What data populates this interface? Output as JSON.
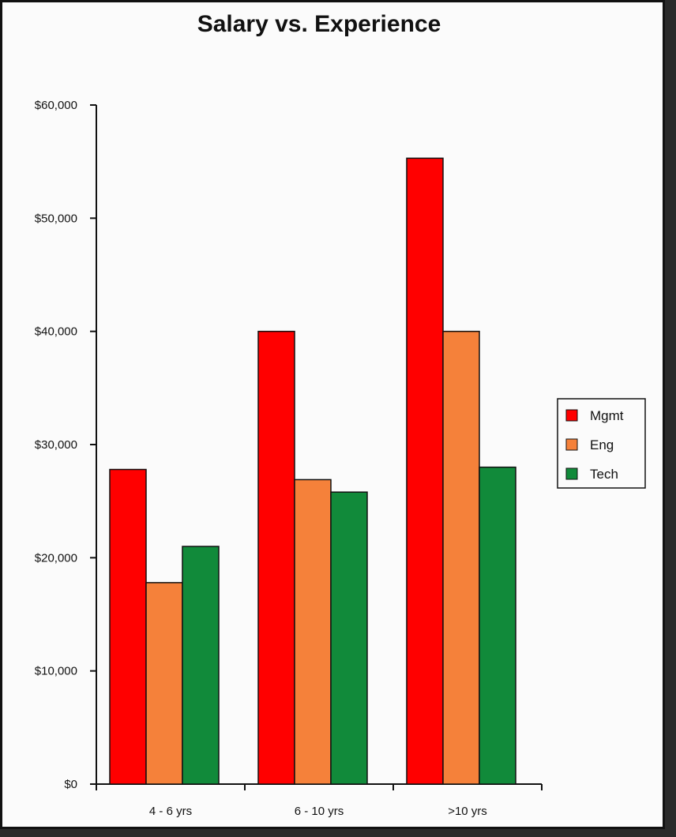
{
  "chart_data": {
    "type": "bar",
    "title": "Salary vs. Experience",
    "categories": [
      "4 - 6 yrs",
      "6 - 10 yrs",
      ">10 yrs"
    ],
    "series": [
      {
        "name": "Mgmt",
        "color": "#ff0000",
        "values": [
          27800,
          40000,
          55300
        ]
      },
      {
        "name": "Eng",
        "color": "#f5813a",
        "values": [
          17800,
          26900,
          40000
        ]
      },
      {
        "name": "Tech",
        "color": "#118a3a",
        "values": [
          21000,
          25800,
          28000
        ]
      }
    ],
    "ylim": [
      0,
      60000
    ],
    "yticks": [
      "$0",
      "$10,000",
      "$20,000",
      "$30,000",
      "$40,000",
      "$50,000",
      "$60,000"
    ],
    "ytick_values": [
      0,
      10000,
      20000,
      30000,
      40000,
      50000,
      60000
    ],
    "grid": false,
    "legend_position": "right"
  }
}
